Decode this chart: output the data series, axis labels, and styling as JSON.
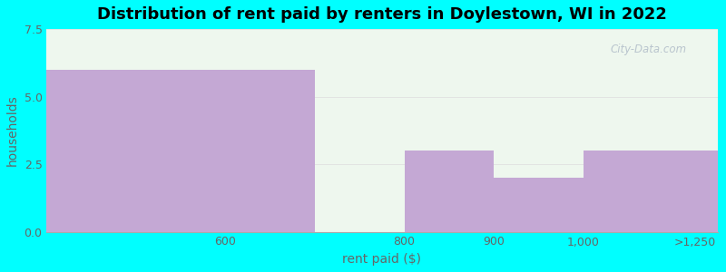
{
  "title": "Distribution of rent paid by renters in Doylestown, WI in 2022",
  "xlabel": "rent paid ($)",
  "ylabel": "households",
  "bar_lefts": [
    400,
    700,
    800,
    900,
    1000
  ],
  "bar_rights": [
    700,
    800,
    900,
    1000,
    1150
  ],
  "bar_values": [
    6,
    0,
    3,
    2,
    3
  ],
  "bar_color": "#c4a8d4",
  "xtick_positions": [
    600,
    800,
    900,
    1000,
    1125
  ],
  "xtick_labels": [
    "600",
    "800",
    "900",
    "1,000",
    ">1,250"
  ],
  "ylim": [
    0,
    7.5
  ],
  "xlim": [
    400,
    1150
  ],
  "yticks": [
    0,
    2.5,
    5,
    7.5
  ],
  "outer_bg": "#00ffff",
  "plot_bg": "#eef7ee",
  "title_fontsize": 13,
  "axis_label_fontsize": 10,
  "tick_fontsize": 9,
  "tick_color": "#666666",
  "label_color": "#666666",
  "grid_color": "#dddddd",
  "watermark": "City-Data.com"
}
